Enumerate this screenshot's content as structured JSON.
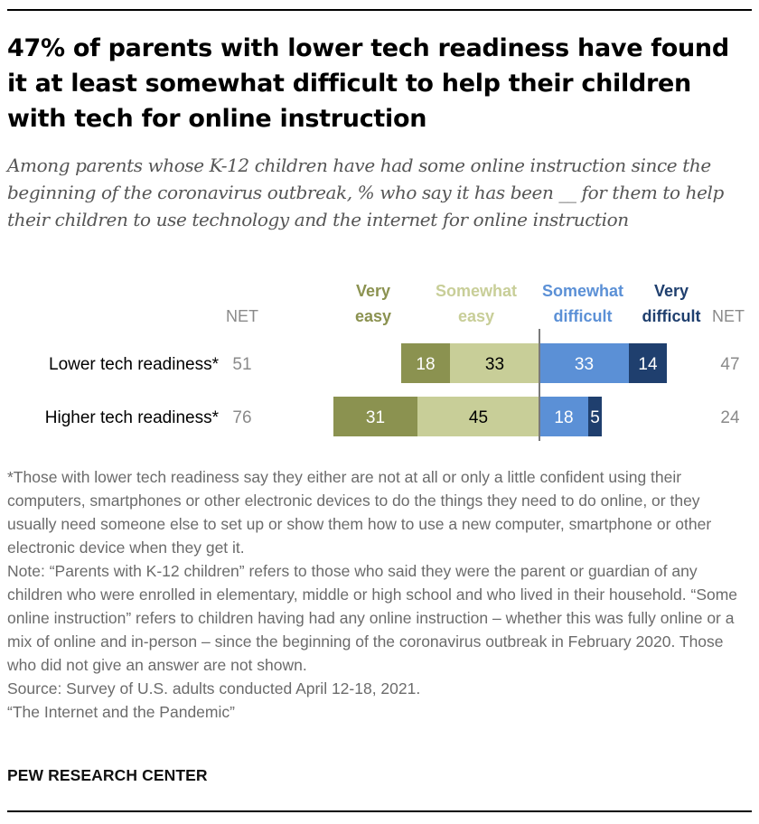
{
  "title": "47% of parents with lower tech readiness have found it at least somewhat difficult to help their children with tech for online instruction",
  "subtitle": "Among parents whose K-12 children have had some online instruction since the beginning of the coronavirus outbreak, % who say it has been __ for them to help their children to use technology and the internet for online instruction",
  "chart_data": {
    "type": "bar",
    "orientation": "horizontal",
    "stacked": "diverging",
    "categories": [
      "Lower tech readiness*",
      "Higher tech readiness*"
    ],
    "series": [
      {
        "name": "Very easy",
        "values": [
          18,
          31
        ],
        "color": "#8b9250",
        "side": "easy"
      },
      {
        "name": "Somewhat easy",
        "values": [
          33,
          45
        ],
        "color": "#c8ce98",
        "side": "easy"
      },
      {
        "name": "Somewhat difficult",
        "values": [
          33,
          18
        ],
        "color": "#5b90d6",
        "side": "difficult"
      },
      {
        "name": "Very difficult",
        "values": [
          14,
          5
        ],
        "color": "#1f3f6e",
        "side": "difficult"
      }
    ],
    "net_label": "NET",
    "net_easy": [
      51,
      76
    ],
    "net_difficult": [
      47,
      24
    ],
    "legend_lines": [
      [
        "Very",
        "easy"
      ],
      [
        "Somewhat",
        "easy"
      ],
      [
        "Somewhat",
        "difficult"
      ],
      [
        "Very",
        "difficult"
      ]
    ],
    "legend_colors": [
      "#8b9250",
      "#c8ce98",
      "#5b90d6",
      "#1f3f6e"
    ],
    "legend_placement": "top",
    "grid": false
  },
  "footnotes": [
    "*Those with lower tech readiness say they either are not at all or only a little confident using their computers, smartphones or other electronic devices to do the things they need to do online, or they usually need someone else to set up or show them how to use a new computer, smartphone or other electronic device when they get it.",
    "Note: “Parents with K-12 children” refers to those who said they were the parent or guardian of any children who were enrolled in elementary, middle or high school and who lived in their household. “Some online instruction” refers to children having had any online instruction – whether this was fully online or a mix of online and in-person – since the beginning of the coronavirus outbreak in February 2020. Those who did not give an answer are not shown.",
    "Source: Survey of U.S. adults conducted April 12-18, 2021.",
    "“The Internet and the Pandemic”"
  ],
  "brand": "PEW RESEARCH CENTER"
}
